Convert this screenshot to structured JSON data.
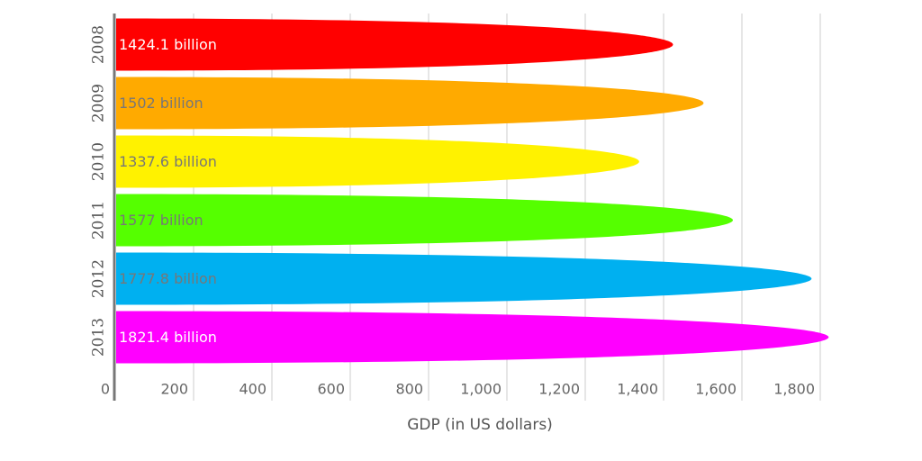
{
  "chart_data": {
    "type": "bar",
    "orientation": "horizontal",
    "categories": [
      "2008",
      "2009",
      "2010",
      "2011",
      "2012",
      "2013"
    ],
    "values": [
      1424.1,
      1502,
      1337.6,
      1577,
      1777.8,
      1821.4
    ],
    "value_labels": [
      "1424.1 billion",
      "1502 billion",
      "1337.6 billion",
      "1577 billion",
      "1777.8 billion",
      "1821.4 billion"
    ],
    "colors": [
      "#ff0000",
      "#ffaa00",
      "#fff200",
      "#55ff00",
      "#00b0f0",
      "#ff00ff"
    ],
    "label_colors": [
      "#ffffff",
      "#777777",
      "#777777",
      "#777777",
      "#777777",
      "#ffffff"
    ],
    "x_label": "GDP (in US dollars)",
    "xlim": [
      0,
      1800
    ],
    "xticks": [
      0,
      200,
      400,
      600,
      800,
      {
        "value": 1000,
        "label": "1,000"
      },
      {
        "value": 1200,
        "label": "1,200"
      },
      {
        "value": 1400,
        "label": "1,400"
      },
      {
        "value": 1600,
        "label": "1,600"
      },
      {
        "value": 1800,
        "label": "1,800"
      }
    ],
    "grid": true
  }
}
